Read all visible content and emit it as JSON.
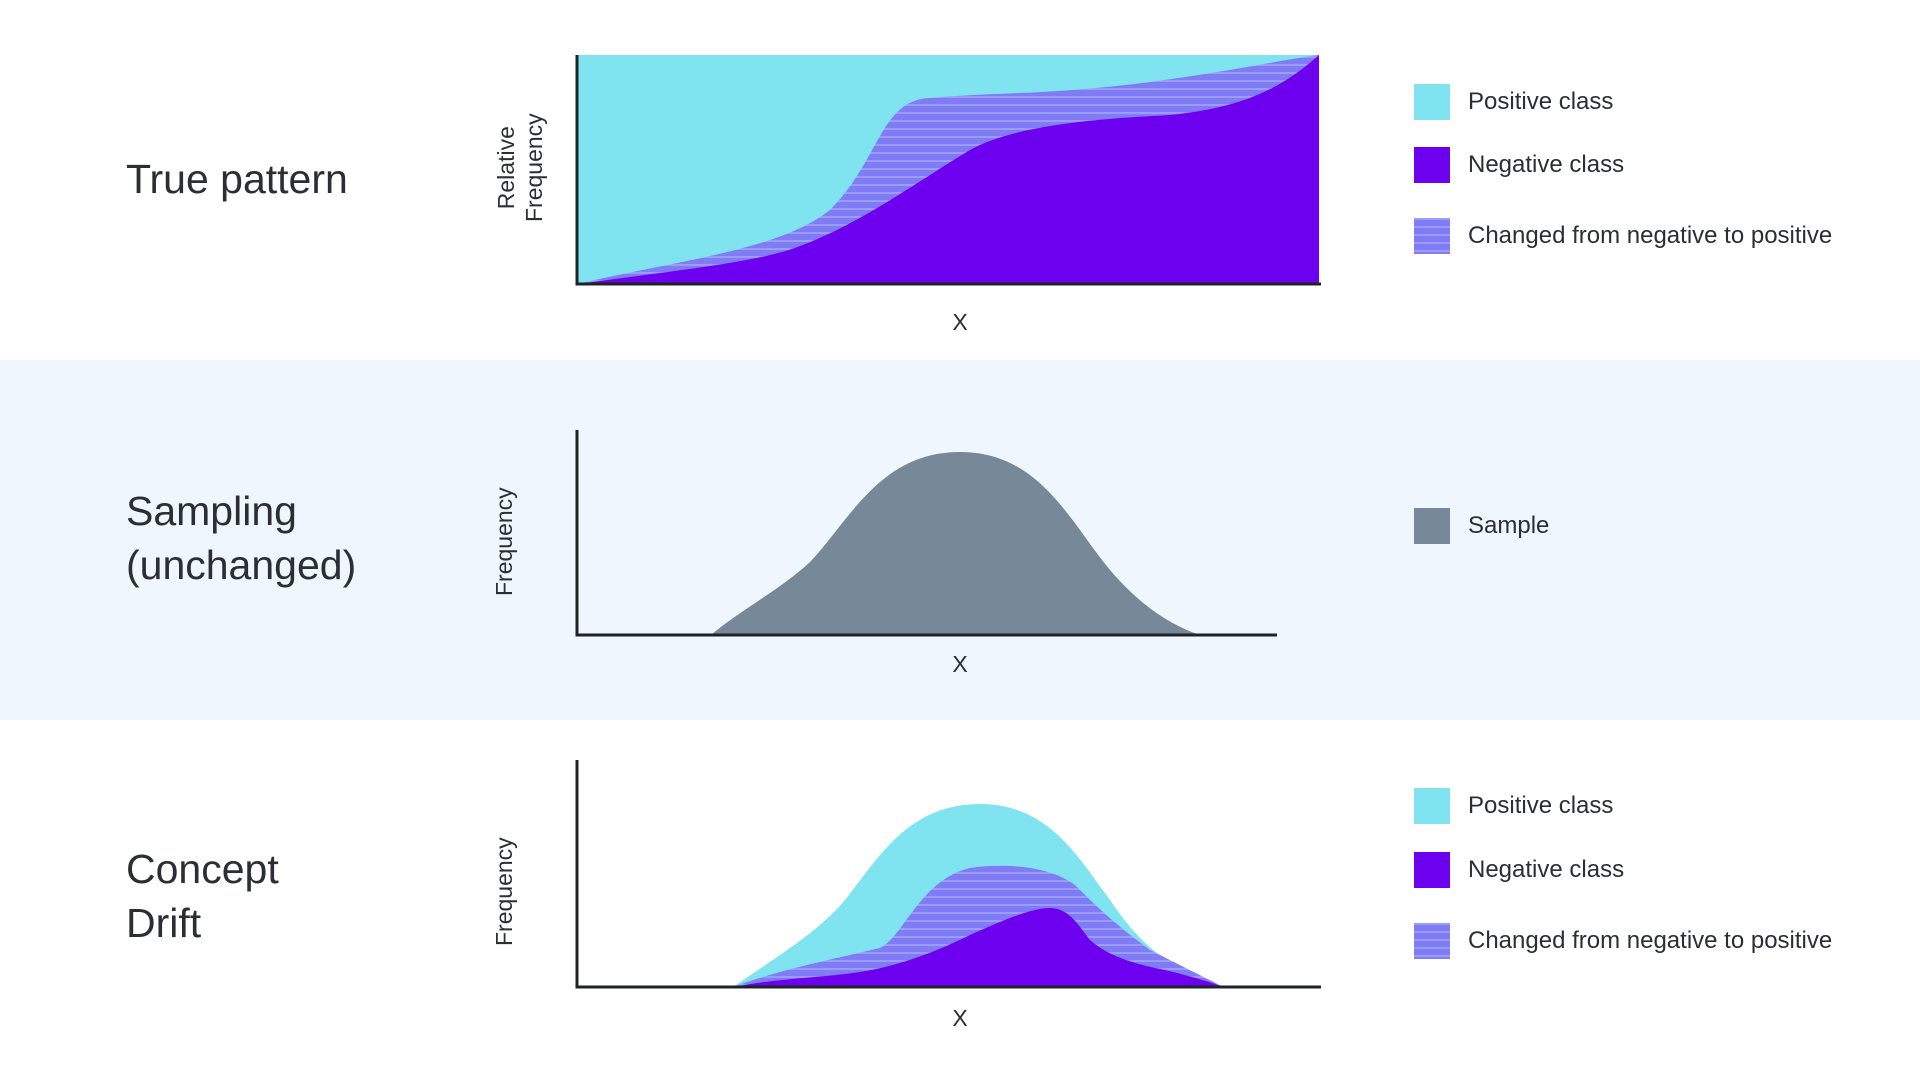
{
  "colors": {
    "positive": "#7fe3f0",
    "negative": "#6d00ee",
    "changed": "#7f7cf6",
    "changed_stripe": "#9b9bf8",
    "sample": "#778899",
    "axis": "#1f2326",
    "band": "#eff6fd"
  },
  "rows": {
    "true_pattern": {
      "title_lines": [
        "True pattern"
      ],
      "ylabel_lines": [
        "Relative",
        "Frequency"
      ],
      "xlabel": "X",
      "legend": [
        {
          "label": "Positive class",
          "swatch": "positive"
        },
        {
          "label": "Negative class",
          "swatch": "negative"
        },
        {
          "label": "Changed from negative to positive",
          "swatch": "changed"
        }
      ]
    },
    "sampling": {
      "title_lines": [
        "Sampling",
        "(unchanged)"
      ],
      "ylabel_lines": [
        "Frequency"
      ],
      "xlabel": "X",
      "legend": [
        {
          "label": "Sample",
          "swatch": "sample"
        }
      ]
    },
    "concept_drift": {
      "title_lines": [
        "Concept",
        "Drift"
      ],
      "ylabel_lines": [
        "Frequency"
      ],
      "xlabel": "X",
      "legend": [
        {
          "label": "Positive class",
          "swatch": "positive"
        },
        {
          "label": "Negative class",
          "swatch": "negative"
        },
        {
          "label": "Changed from negative to positive",
          "swatch": "changed"
        }
      ]
    }
  }
}
